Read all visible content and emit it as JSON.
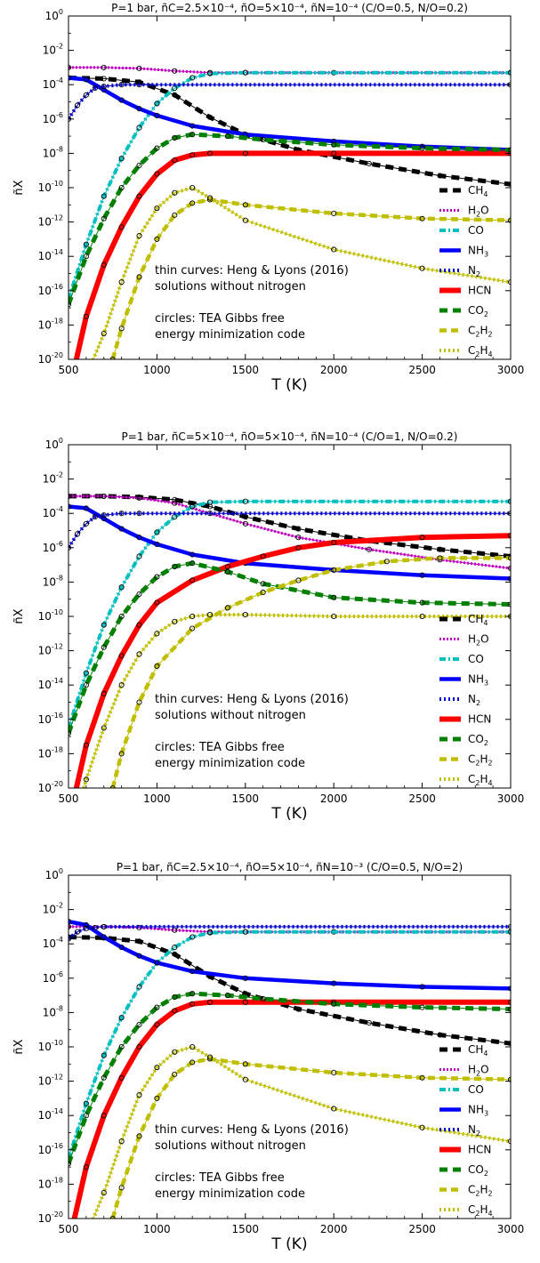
{
  "chart_data": [
    {
      "type": "line",
      "title": "P=1 bar, ñC=2.5×10⁻⁴, ñO=5×10⁻⁴, ñN=10⁻⁴ (C/O=0.5, N/O=0.2)",
      "xlabel": "T (K)",
      "ylabel": "ñX",
      "xlim": [
        500,
        3000
      ],
      "ylim": [
        1e-20,
        1
      ],
      "yscale": "log",
      "legend_position": "right",
      "annotations": [
        "thin curves: Heng & Lyons (2016)",
        "solutions without nitrogen",
        "circles: TEA Gibbs free",
        "energy minimization code"
      ],
      "series": [
        {
          "name": "CH4",
          "x": [
            500,
            700,
            900,
            1100,
            1300,
            1500,
            1800,
            2200,
            2600,
            3000
          ],
          "log10_y": [
            -3.6,
            -3.65,
            -3.85,
            -4.6,
            -5.9,
            -6.9,
            -7.8,
            -8.6,
            -9.3,
            -9.8
          ]
        },
        {
          "name": "H2O",
          "x": [
            500,
            700,
            900,
            1100,
            1300,
            1500,
            2000,
            3000
          ],
          "log10_y": [
            -3.0,
            -3.0,
            -3.05,
            -3.2,
            -3.3,
            -3.3,
            -3.3,
            -3.3
          ]
        },
        {
          "name": "CO",
          "x": [
            500,
            600,
            700,
            800,
            900,
            1000,
            1100,
            1200,
            1300,
            1500,
            3000
          ],
          "log10_y": [
            -16.5,
            -13.3,
            -10.5,
            -8.3,
            -6.5,
            -5.1,
            -4.2,
            -3.6,
            -3.35,
            -3.3,
            -3.3
          ]
        },
        {
          "name": "NH3",
          "x": [
            500,
            600,
            700,
            800,
            900,
            1000,
            1200,
            1500,
            2000,
            2500,
            3000
          ],
          "log10_y": [
            -3.6,
            -3.7,
            -4.3,
            -4.9,
            -5.4,
            -5.8,
            -6.4,
            -6.9,
            -7.3,
            -7.6,
            -7.8
          ]
        },
        {
          "name": "N2",
          "x": [
            500,
            550,
            600,
            650,
            700,
            800,
            900,
            3000
          ],
          "log10_y": [
            -6.0,
            -5.2,
            -4.6,
            -4.2,
            -4.1,
            -4.0,
            -4.0,
            -4.0
          ]
        },
        {
          "name": "HCN",
          "x": [
            500,
            600,
            700,
            800,
            900,
            1000,
            1100,
            1200,
            1300,
            1500,
            2000,
            3000
          ],
          "log10_y": [
            -22.0,
            -17.5,
            -14.5,
            -12.3,
            -10.5,
            -9.2,
            -8.4,
            -8.1,
            -8.0,
            -8.0,
            -8.0,
            -8.0
          ]
        },
        {
          "name": "CO2",
          "x": [
            500,
            600,
            700,
            800,
            900,
            1000,
            1100,
            1200,
            1400,
            1600,
            2000,
            2500,
            3000
          ],
          "log10_y": [
            -16.8,
            -14.0,
            -11.8,
            -10.0,
            -8.7,
            -7.7,
            -7.1,
            -6.9,
            -7.0,
            -7.2,
            -7.5,
            -7.7,
            -7.8
          ]
        },
        {
          "name": "C2H2",
          "x": [
            750,
            800,
            900,
            1000,
            1100,
            1200,
            1300,
            1500,
            2000,
            2500,
            3000
          ],
          "log10_y": [
            -20.0,
            -18.2,
            -15.2,
            -13.0,
            -11.6,
            -10.9,
            -10.7,
            -11.0,
            -11.5,
            -11.8,
            -11.9
          ]
        },
        {
          "name": "C2H4",
          "x": [
            600,
            700,
            800,
            900,
            1000,
            1100,
            1200,
            1300,
            1500,
            2000,
            2500,
            3000
          ],
          "log10_y": [
            -21.0,
            -18.5,
            -15.5,
            -12.8,
            -11.2,
            -10.3,
            -10.0,
            -10.6,
            -11.9,
            -13.6,
            -14.7,
            -15.5
          ]
        }
      ]
    },
    {
      "type": "line",
      "title": "P=1 bar, ñC=5×10⁻⁴, ñO=5×10⁻⁴, ñN=10⁻⁴ (C/O=1, N/O=0.2)",
      "xlabel": "T (K)",
      "ylabel": "ñX",
      "xlim": [
        500,
        3000
      ],
      "ylim": [
        1e-20,
        1
      ],
      "yscale": "log",
      "legend_position": "right",
      "annotations": [
        "thin curves: Heng & Lyons (2016)",
        "solutions without nitrogen",
        "circles: TEA Gibbs free",
        "energy minimization code"
      ],
      "series": [
        {
          "name": "CH4",
          "x": [
            500,
            700,
            900,
            1100,
            1300,
            1500,
            1800,
            2200,
            2600,
            3000
          ],
          "log10_y": [
            -3.0,
            -3.0,
            -3.05,
            -3.2,
            -3.6,
            -4.2,
            -4.9,
            -5.6,
            -6.1,
            -6.5
          ]
        },
        {
          "name": "H2O",
          "x": [
            500,
            700,
            900,
            1100,
            1300,
            1500,
            1800,
            2200,
            2600,
            3000
          ],
          "log10_y": [
            -3.0,
            -3.0,
            -3.1,
            -3.4,
            -4.0,
            -4.6,
            -5.4,
            -6.1,
            -6.7,
            -7.2
          ]
        },
        {
          "name": "CO",
          "x": [
            500,
            600,
            700,
            800,
            900,
            1000,
            1100,
            1200,
            1300,
            1500,
            3000
          ],
          "log10_y": [
            -16.5,
            -13.3,
            -10.5,
            -8.3,
            -6.5,
            -5.1,
            -4.2,
            -3.6,
            -3.35,
            -3.3,
            -3.3
          ]
        },
        {
          "name": "NH3",
          "x": [
            500,
            600,
            700,
            800,
            900,
            1000,
            1200,
            1500,
            2000,
            2500,
            3000
          ],
          "log10_y": [
            -3.6,
            -3.7,
            -4.3,
            -4.9,
            -5.4,
            -5.8,
            -6.4,
            -6.9,
            -7.3,
            -7.6,
            -7.8
          ]
        },
        {
          "name": "N2",
          "x": [
            500,
            550,
            600,
            650,
            700,
            800,
            900,
            3000
          ],
          "log10_y": [
            -6.0,
            -5.2,
            -4.6,
            -4.2,
            -4.1,
            -4.0,
            -4.0,
            -4.0
          ]
        },
        {
          "name": "HCN",
          "x": [
            500,
            600,
            700,
            800,
            900,
            1000,
            1200,
            1400,
            1600,
            1800,
            2000,
            2500,
            3000
          ],
          "log10_y": [
            -22.0,
            -17.5,
            -14.5,
            -12.3,
            -10.5,
            -9.2,
            -7.9,
            -7.1,
            -6.5,
            -6.0,
            -5.7,
            -5.4,
            -5.3
          ]
        },
        {
          "name": "CO2",
          "x": [
            500,
            600,
            700,
            800,
            900,
            1000,
            1100,
            1200,
            1400,
            1600,
            2000,
            2500,
            3000
          ],
          "log10_y": [
            -16.8,
            -14.0,
            -11.8,
            -10.0,
            -8.7,
            -7.7,
            -7.1,
            -6.9,
            -7.4,
            -8.1,
            -8.9,
            -9.2,
            -9.3
          ]
        },
        {
          "name": "C2H2",
          "x": [
            750,
            800,
            900,
            1000,
            1200,
            1400,
            1600,
            1800,
            2000,
            2300,
            2600,
            3000
          ],
          "log10_y": [
            -20.0,
            -18.0,
            -15.0,
            -12.9,
            -10.7,
            -9.5,
            -8.6,
            -7.9,
            -7.3,
            -6.8,
            -6.6,
            -6.6
          ]
        },
        {
          "name": "C2H4",
          "x": [
            500,
            600,
            700,
            800,
            900,
            1000,
            1100,
            1200,
            1300,
            1500,
            2000,
            2500,
            3000
          ],
          "log10_y": [
            -23.0,
            -19.5,
            -16.5,
            -14.0,
            -12.2,
            -11.0,
            -10.3,
            -10.0,
            -9.9,
            -9.9,
            -10.0,
            -10.0,
            -10.0
          ]
        }
      ]
    },
    {
      "type": "line",
      "title": "P=1 bar, ñC=2.5×10⁻⁴, ñO=5×10⁻⁴, ñN=10⁻³ (C/O=0.5, N/O=2)",
      "xlabel": "T (K)",
      "ylabel": "ñX",
      "xlim": [
        500,
        3000
      ],
      "ylim": [
        1e-20,
        1
      ],
      "yscale": "log",
      "legend_position": "right",
      "annotations": [
        "thin curves: Heng & Lyons (2016)",
        "solutions without nitrogen",
        "circles: TEA Gibbs free",
        "energy minimization code"
      ],
      "series": [
        {
          "name": "CH4",
          "x": [
            500,
            700,
            900,
            1100,
            1300,
            1500,
            1800,
            2200,
            2600,
            3000
          ],
          "log10_y": [
            -3.6,
            -3.65,
            -3.85,
            -4.6,
            -5.9,
            -6.9,
            -7.8,
            -8.6,
            -9.3,
            -9.8
          ]
        },
        {
          "name": "H2O",
          "x": [
            500,
            700,
            900,
            1100,
            1300,
            1500,
            2000,
            3000
          ],
          "log10_y": [
            -3.0,
            -3.0,
            -3.05,
            -3.2,
            -3.3,
            -3.3,
            -3.3,
            -3.3
          ]
        },
        {
          "name": "CO",
          "x": [
            500,
            600,
            700,
            800,
            900,
            1000,
            1100,
            1200,
            1300,
            1500,
            3000
          ],
          "log10_y": [
            -16.5,
            -13.3,
            -10.5,
            -8.3,
            -6.5,
            -5.1,
            -4.2,
            -3.6,
            -3.35,
            -3.3,
            -3.3
          ]
        },
        {
          "name": "NH3",
          "x": [
            500,
            600,
            700,
            800,
            900,
            1000,
            1200,
            1500,
            2000,
            2500,
            3000
          ],
          "log10_y": [
            -2.7,
            -2.9,
            -3.6,
            -4.2,
            -4.7,
            -5.1,
            -5.6,
            -6.0,
            -6.3,
            -6.5,
            -6.6
          ]
        },
        {
          "name": "N2",
          "x": [
            500,
            550,
            600,
            650,
            700,
            3000
          ],
          "log10_y": [
            -3.7,
            -3.3,
            -3.1,
            -3.05,
            -3.0,
            -3.0
          ]
        },
        {
          "name": "HCN",
          "x": [
            500,
            600,
            700,
            800,
            900,
            1000,
            1100,
            1200,
            1300,
            1500,
            2000,
            3000
          ],
          "log10_y": [
            -21.5,
            -17.0,
            -14.0,
            -11.8,
            -10.0,
            -8.7,
            -7.9,
            -7.5,
            -7.4,
            -7.4,
            -7.4,
            -7.4
          ]
        },
        {
          "name": "CO2",
          "x": [
            500,
            600,
            700,
            800,
            900,
            1000,
            1100,
            1200,
            1400,
            1600,
            2000,
            2500,
            3000
          ],
          "log10_y": [
            -16.8,
            -14.0,
            -11.8,
            -10.0,
            -8.7,
            -7.7,
            -7.1,
            -6.9,
            -7.0,
            -7.2,
            -7.5,
            -7.7,
            -7.8
          ]
        },
        {
          "name": "C2H2",
          "x": [
            750,
            800,
            900,
            1000,
            1100,
            1200,
            1300,
            1500,
            2000,
            2500,
            3000
          ],
          "log10_y": [
            -20.0,
            -18.2,
            -15.2,
            -13.0,
            -11.6,
            -10.9,
            -10.7,
            -11.0,
            -11.5,
            -11.8,
            -11.9
          ]
        },
        {
          "name": "C2H4",
          "x": [
            600,
            700,
            800,
            900,
            1000,
            1100,
            1200,
            1300,
            1500,
            2000,
            2500,
            3000
          ],
          "log10_y": [
            -21.0,
            -18.5,
            -15.5,
            -12.8,
            -11.2,
            -10.3,
            -10.0,
            -10.6,
            -11.9,
            -13.6,
            -14.7,
            -15.5
          ]
        }
      ]
    }
  ],
  "legend": [
    {
      "key": "CH4",
      "main": "CH",
      "sub": "4",
      "suffix": "",
      "color": "#000000",
      "style": "dashed-thick"
    },
    {
      "key": "H2O",
      "main": "H",
      "sub": "2",
      "suffix": "O",
      "color": "#bf00bf",
      "style": "dotted-thin"
    },
    {
      "key": "CO",
      "main": "CO",
      "sub": "",
      "suffix": "",
      "color": "#00bfbf",
      "style": "dashdot"
    },
    {
      "key": "NH3",
      "main": "NH",
      "sub": "3",
      "suffix": "",
      "color": "#0000ff",
      "style": "solid"
    },
    {
      "key": "N2",
      "main": "N",
      "sub": "2",
      "suffix": "",
      "color": "#0000cc",
      "style": "dotted"
    },
    {
      "key": "HCN",
      "main": "HCN",
      "sub": "",
      "suffix": "",
      "color": "#ff0000",
      "style": "solid-thick"
    },
    {
      "key": "CO2",
      "main": "CO",
      "sub": "2",
      "suffix": "",
      "color": "#007f00",
      "style": "dashed-thick"
    },
    {
      "key": "C2H2",
      "main": "C",
      "sub": "2",
      "suffix": "H",
      "sub2": "2",
      "color": "#bfbf00",
      "style": "dashed"
    },
    {
      "key": "C2H4",
      "main": "C",
      "sub": "2",
      "suffix": "H",
      "sub2": "4",
      "color": "#bfbf00",
      "style": "dotted"
    }
  ],
  "x_ticks": [
    500,
    1000,
    1500,
    2000,
    2500,
    3000
  ],
  "y_ticks": [
    0,
    -2,
    -4,
    -6,
    -8,
    -10,
    -12,
    -14,
    -16,
    -18,
    -20
  ]
}
